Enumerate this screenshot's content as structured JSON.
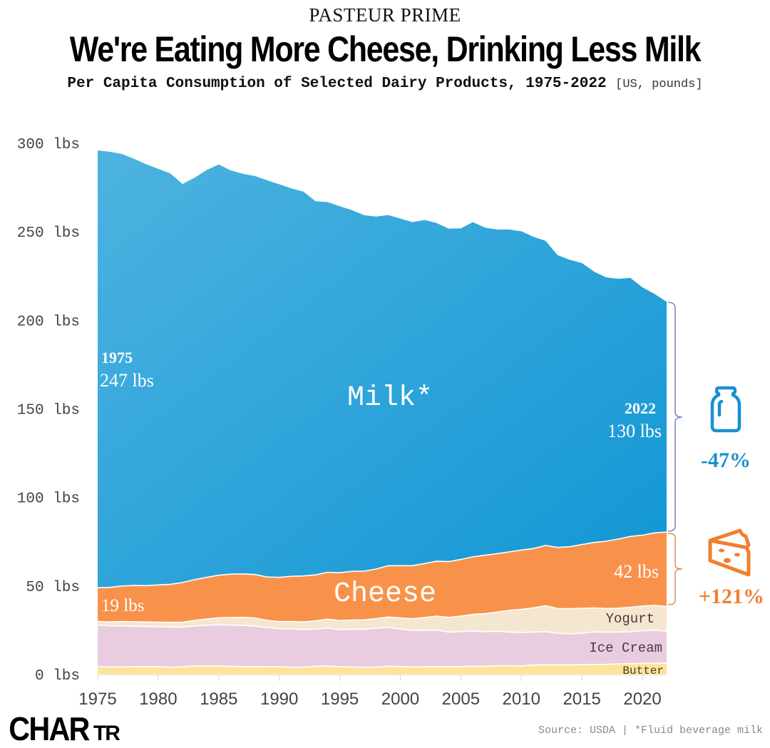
{
  "header": {
    "brand": "PASTEUR PRIME",
    "title": "We're Eating More Cheese, Drinking Less Milk",
    "subtitle": "Per Capita Consumption of Selected Dairy Products, 1975-2022",
    "subtitle_units": "[US, pounds]"
  },
  "footer": {
    "source": "Source: USDA | *Fluid beverage milk",
    "logo_big": "CHAR",
    "logo_small": "TR"
  },
  "colors": {
    "milk_top": "#4db3e0",
    "milk_bottom": "#1196d4",
    "cheese": "#f8924a",
    "yogurt": "#f5e6d0",
    "ice_cream": "#e9cce0",
    "butter": "#fde49a",
    "milk_accent": "#1a8fd1",
    "cheese_accent": "#f07f2f",
    "axis_text": "#444444",
    "bracket_milk": "#5a6fc8",
    "bracket_cheese": "#e07a3a"
  },
  "annotations": {
    "milk_label": "Milk*",
    "cheese_label": "Cheese",
    "yogurt_label": "Yogurt",
    "ice_cream_label": "Ice Cream",
    "butter_label": "Butter",
    "start_year": "1975",
    "start_milk": "247 lbs",
    "start_cheese": "19 lbs",
    "end_year": "2022",
    "end_milk": "130 lbs",
    "end_cheese": "42 lbs",
    "milk_change": "-47%",
    "cheese_change": "+121%",
    "milk_icon": "milk-bottle-icon",
    "cheese_icon": "cheese-wedge-icon"
  },
  "chart_data": {
    "type": "area",
    "stacked": true,
    "title": "We're Eating More Cheese, Drinking Less Milk",
    "subtitle": "Per Capita Consumption of Selected Dairy Products, 1975-2022 [US, pounds]",
    "xlabel": "",
    "ylabel": "",
    "ylim": [
      0,
      300
    ],
    "xlim": [
      1975,
      2022
    ],
    "yticks": [
      0,
      50,
      100,
      150,
      200,
      250,
      300
    ],
    "ytick_labels": [
      "0 lbs",
      "50 lbs",
      "100 lbs",
      "150 lbs",
      "200 lbs",
      "250 lbs",
      "300 lbs"
    ],
    "xticks": [
      1975,
      1980,
      1985,
      1990,
      1995,
      2000,
      2005,
      2010,
      2015,
      2020
    ],
    "xtick_labels": [
      "1975",
      "1980",
      "1985",
      "1990",
      "1995",
      "2000",
      "2005",
      "2010",
      "2015",
      "2020"
    ],
    "grid": false,
    "legend": "inline labels",
    "x": [
      1975,
      1976,
      1977,
      1978,
      1979,
      1980,
      1981,
      1982,
      1983,
      1984,
      1985,
      1986,
      1987,
      1988,
      1989,
      1990,
      1991,
      1992,
      1993,
      1994,
      1995,
      1996,
      1997,
      1998,
      1999,
      2000,
      2001,
      2002,
      2003,
      2004,
      2005,
      2006,
      2007,
      2008,
      2009,
      2010,
      2011,
      2012,
      2013,
      2014,
      2015,
      2016,
      2017,
      2018,
      2019,
      2020,
      2021,
      2022
    ],
    "series": [
      {
        "name": "Butter",
        "values": [
          4.5,
          4.3,
          4.3,
          4.4,
          4.5,
          4.5,
          4.2,
          4.3,
          4.9,
          4.9,
          4.9,
          4.6,
          4.5,
          4.5,
          4.4,
          4.4,
          4.2,
          4.2,
          4.7,
          4.8,
          4.4,
          4.3,
          4.1,
          4.2,
          4.7,
          4.5,
          4.3,
          4.4,
          4.5,
          4.5,
          4.5,
          4.7,
          4.7,
          5.0,
          5.0,
          4.9,
          5.4,
          5.5,
          5.5,
          5.5,
          5.6,
          5.7,
          5.7,
          6.0,
          6.2,
          6.3,
          6.5,
          6.5
        ]
      },
      {
        "name": "Ice Cream",
        "values": [
          23.5,
          23.2,
          23.3,
          22.9,
          22.6,
          22.6,
          22.7,
          22.5,
          22.6,
          23.0,
          23.2,
          23.3,
          23.3,
          22.8,
          22.1,
          21.5,
          21.6,
          21.2,
          21.0,
          21.5,
          21.0,
          21.3,
          21.5,
          22.0,
          22.0,
          21.2,
          20.6,
          20.5,
          20.6,
          19.5,
          19.8,
          19.9,
          19.5,
          19.5,
          19.0,
          18.9,
          18.6,
          18.8,
          17.8,
          17.5,
          17.8,
          18.4,
          18.2,
          18.0,
          18.0,
          18.5,
          18.5,
          18.0
        ]
      },
      {
        "name": "Yogurt",
        "values": [
          2.0,
          2.2,
          2.4,
          2.5,
          2.6,
          2.5,
          2.6,
          2.7,
          3.1,
          3.5,
          4.0,
          4.3,
          4.5,
          4.7,
          4.1,
          4.0,
          4.2,
          4.3,
          4.6,
          5.0,
          5.1,
          5.2,
          5.3,
          5.4,
          5.8,
          6.3,
          6.6,
          7.3,
          7.9,
          8.3,
          8.7,
          9.4,
          10.2,
          10.8,
          12.3,
          13.0,
          13.7,
          14.6,
          14.0,
          14.2,
          14.0,
          13.5,
          13.4,
          13.5,
          13.8,
          13.9,
          14.0,
          14.0
        ]
      },
      {
        "name": "Cheese",
        "values": [
          19,
          19.5,
          20,
          20.5,
          20.5,
          21,
          21.5,
          22.5,
          23,
          23.5,
          24,
          24.5,
          24.5,
          24.5,
          24.5,
          25,
          25.5,
          26,
          26,
          26.5,
          27,
          27.5,
          27.5,
          28,
          29,
          29.5,
          30,
          30.5,
          31,
          31.5,
          32,
          32.5,
          33,
          33,
          33,
          33.5,
          33.5,
          34,
          34.5,
          35,
          36,
          37,
          38,
          39,
          40,
          40,
          41,
          42
        ]
      },
      {
        "name": "Milk*",
        "values": [
          247,
          246,
          244,
          241,
          238,
          235,
          232,
          225,
          227,
          230,
          232,
          228,
          226,
          225,
          224,
          222,
          219,
          217,
          211,
          209,
          207,
          204,
          201,
          199,
          198,
          196,
          194,
          194,
          191,
          188,
          187,
          189,
          185,
          183,
          182,
          180,
          176,
          172,
          165,
          162,
          159,
          153,
          149,
          147,
          146,
          140,
          135,
          130
        ]
      }
    ],
    "annotations": [
      {
        "text": "1975 247 lbs",
        "series": "Milk*",
        "x": 1975
      },
      {
        "text": "2022 130 lbs",
        "series": "Milk*",
        "x": 2022
      },
      {
        "text": "19 lbs",
        "series": "Cheese",
        "x": 1975
      },
      {
        "text": "42 lbs",
        "series": "Cheese",
        "x": 2022
      },
      {
        "text": "-47%",
        "series": "Milk*"
      },
      {
        "text": "+121%",
        "series": "Cheese"
      }
    ]
  }
}
